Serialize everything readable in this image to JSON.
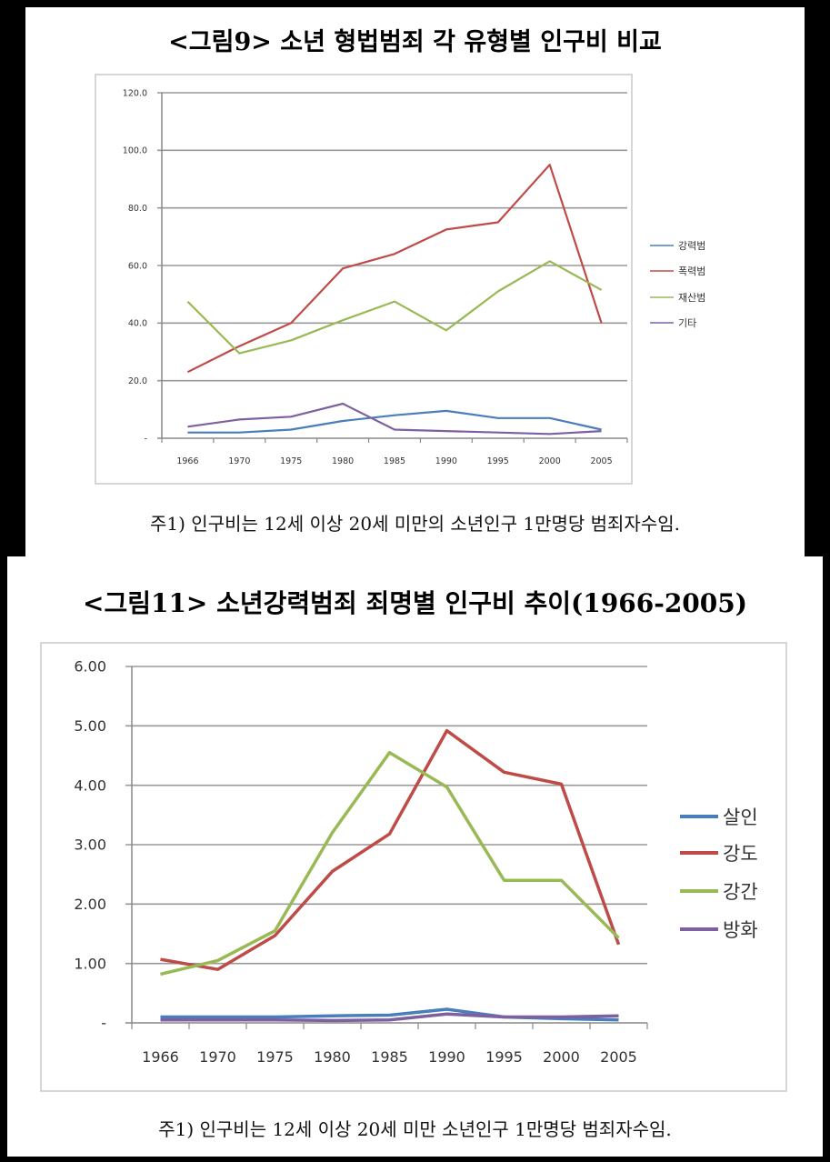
{
  "figures": [
    {
      "title": "<그림9> 소년 형법범죄 각 유형별 인구비 비교",
      "note": "주1) 인구비는 12세 이상 20세 미만의 소년인구 1만명당 범죄자수임."
    },
    {
      "title": "<그림11> 소년강력범죄 죄명별 인구비 추이(1966-2005)",
      "note": "주1) 인구비는 12세 이상 20세 미만 소년인구 1만명당 범죄자수임."
    }
  ],
  "chart_data": [
    {
      "type": "line",
      "title": "<그림9> 소년 형법범죄 각 유형별 인구비 비교",
      "xlabel": "",
      "ylabel": "",
      "categories": [
        "1966",
        "1970",
        "1975",
        "1980",
        "1985",
        "1990",
        "1995",
        "2000",
        "2005"
      ],
      "ylim": [
        0,
        120
      ],
      "yticks": [
        "-",
        "20.0",
        "40.0",
        "60.0",
        "80.0",
        "100.0",
        "120.0"
      ],
      "grid": true,
      "legend": "right",
      "series": [
        {
          "name": "강력범",
          "color": "#4a7ebb",
          "values": [
            2,
            2,
            3,
            6,
            8,
            9.5,
            7,
            7,
            3
          ]
        },
        {
          "name": "폭력범",
          "color": "#be4b48",
          "values": [
            23,
            32,
            40,
            59,
            64,
            72.5,
            75,
            95,
            40
          ]
        },
        {
          "name": "재산범",
          "color": "#98b954",
          "values": [
            47.5,
            29.5,
            34,
            41,
            47.5,
            37.5,
            51,
            61.5,
            51.5
          ]
        },
        {
          "name": "기타",
          "color": "#7d60a0",
          "values": [
            4,
            6.5,
            7.5,
            12,
            3,
            2.5,
            2,
            1.5,
            2.5
          ]
        }
      ]
    },
    {
      "type": "line",
      "title": "<그림11> 소년강력범죄 죄명별 인구비 추이(1966-2005)",
      "xlabel": "",
      "ylabel": "",
      "categories": [
        "1966",
        "1970",
        "1975",
        "1980",
        "1985",
        "1990",
        "1995",
        "2000",
        "2005"
      ],
      "ylim": [
        0,
        6
      ],
      "yticks": [
        "-",
        "1.00",
        "2.00",
        "3.00",
        "4.00",
        "5.00",
        "6.00"
      ],
      "grid": true,
      "legend": "right",
      "series": [
        {
          "name": "살인",
          "color": "#4a7ebb",
          "values": [
            0.1,
            0.1,
            0.1,
            0.12,
            0.13,
            0.23,
            0.1,
            0.07,
            0.05
          ]
        },
        {
          "name": "강도",
          "color": "#be4b48",
          "values": [
            1.07,
            0.9,
            1.47,
            2.55,
            3.18,
            4.92,
            4.22,
            4.02,
            1.32
          ]
        },
        {
          "name": "강간",
          "color": "#98b954",
          "values": [
            0.82,
            1.05,
            1.55,
            3.2,
            4.55,
            3.97,
            2.4,
            2.4,
            1.43
          ]
        },
        {
          "name": "방화",
          "color": "#7d60a0",
          "values": [
            0.05,
            0.05,
            0.05,
            0.04,
            0.05,
            0.15,
            0.1,
            0.1,
            0.12
          ]
        }
      ]
    }
  ]
}
